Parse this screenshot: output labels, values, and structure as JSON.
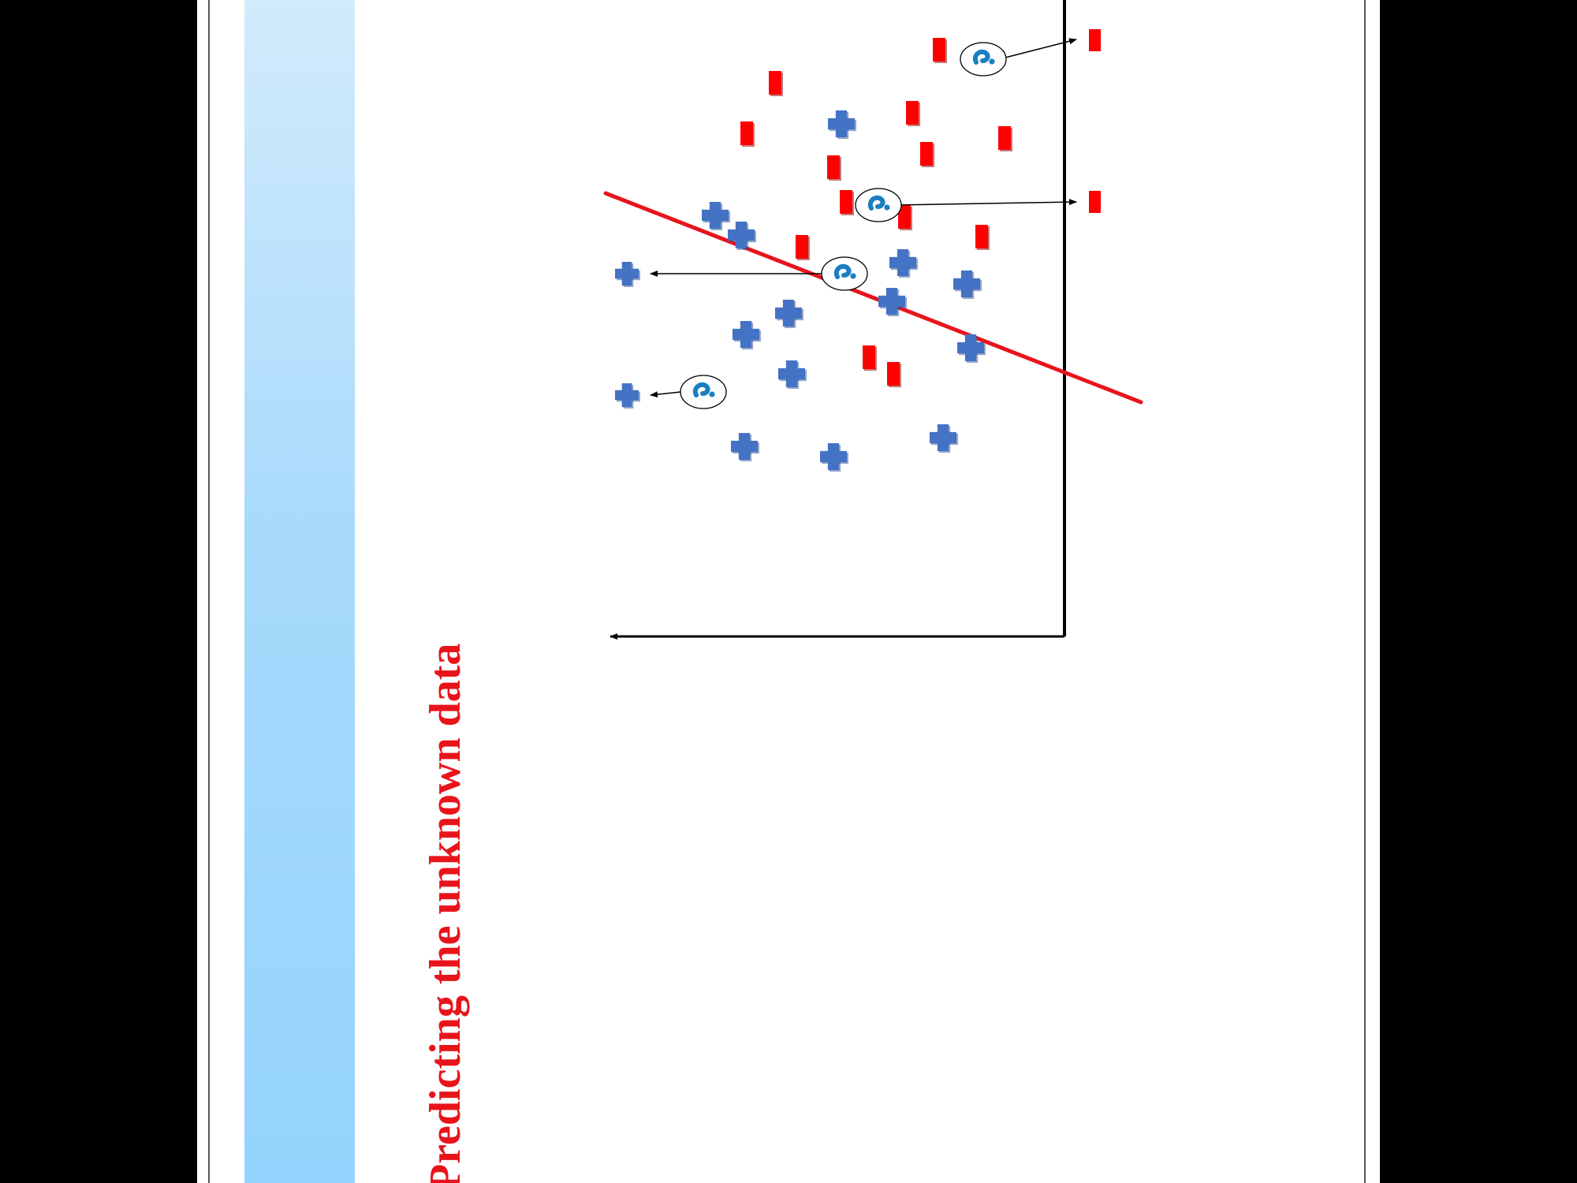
{
  "slide": {
    "title": "Predicting the unknown data",
    "title_color": "#e8141b",
    "band_colors": [
      "#d2ebfb",
      "#94d3fd"
    ]
  },
  "diagram": {
    "classes": [
      {
        "name": "class-a",
        "marker": "red-rectangle",
        "color": "#ff0000"
      },
      {
        "name": "class-b",
        "marker": "blue-plus",
        "color": "#4472c4"
      }
    ],
    "boundary_color": "#e8141b",
    "unknown_marker": "question-mark-icon",
    "unknown_color": "#1a7fc1",
    "unknown_count": 4
  }
}
